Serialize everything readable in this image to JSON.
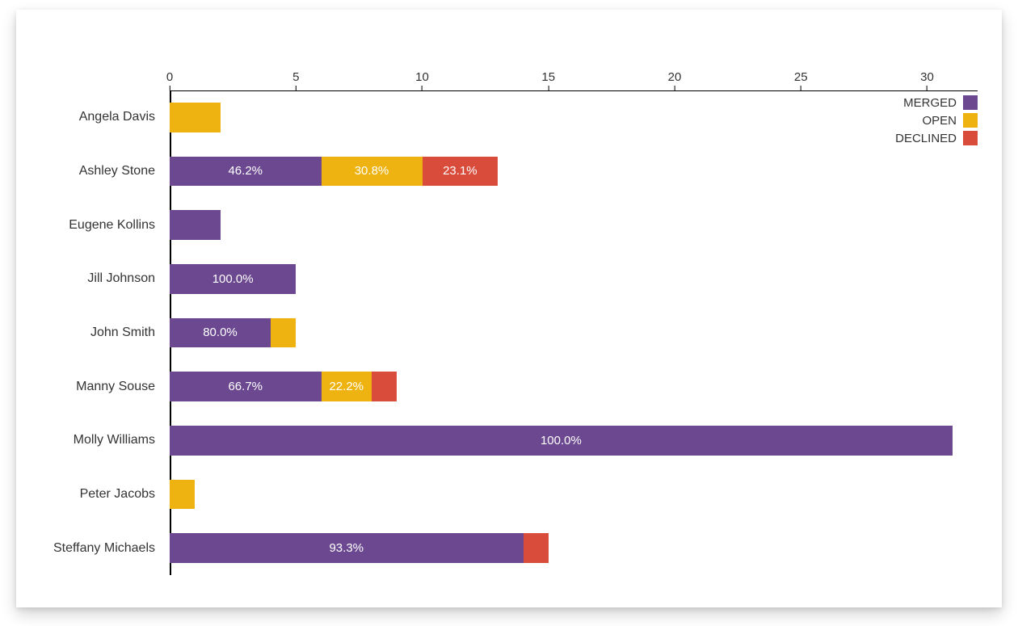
{
  "chart": {
    "type": "stacked-horizontal-bar",
    "background_color": "#ffffff",
    "text_color": "#333333",
    "bar_label_color": "#ffffff",
    "axis_color": "#000000",
    "label_fontsize": 16,
    "tick_fontsize": 15,
    "bar_label_fontsize": 15,
    "x_axis": {
      "min": 0,
      "max": 32,
      "ticks": [
        0,
        5,
        10,
        15,
        20,
        25,
        30
      ],
      "tick_labels": [
        "0",
        "5",
        "10",
        "15",
        "20",
        "25",
        "30"
      ]
    },
    "series": [
      {
        "key": "merged",
        "label": "MERGED",
        "color": "#6b4890"
      },
      {
        "key": "open",
        "label": "OPEN",
        "color": "#eeb310"
      },
      {
        "key": "declined",
        "label": "DECLINED",
        "color": "#d94b3a"
      }
    ],
    "categories": [
      "Angela Davis",
      "Ashley Stone",
      "Eugene Kollins",
      "Jill Johnson",
      "John Smith",
      "Manny Souse",
      "Molly Williams",
      "Peter Jacobs",
      "Steffany Michaels"
    ],
    "data": {
      "merged": [
        0,
        6,
        2,
        5,
        4,
        6,
        31,
        0,
        14
      ],
      "open": [
        2,
        4,
        0,
        0,
        1,
        2,
        0,
        1,
        0
      ],
      "declined": [
        0,
        3,
        0,
        0,
        0,
        1,
        0,
        0,
        1
      ]
    },
    "segment_labels": {
      "merged": [
        "",
        "46.2%",
        "",
        "100.0%",
        "80.0%",
        "66.7%",
        "100.0%",
        "",
        "93.3%"
      ],
      "open": [
        "",
        "30.8%",
        "",
        "",
        "",
        "22.2%",
        "",
        "",
        ""
      ],
      "declined": [
        "",
        "23.1%",
        "",
        "",
        "",
        "",
        "",
        "",
        ""
      ]
    },
    "row_fill": 0.55,
    "legend_position": "top-right"
  }
}
